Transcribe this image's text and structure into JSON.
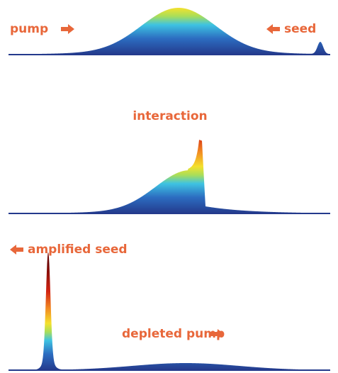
{
  "panels": [
    {
      "labels": {
        "left": "pump",
        "right": "seed"
      }
    },
    {
      "labels": {
        "center": "interaction"
      }
    },
    {
      "labels": {
        "left": "amplified seed",
        "center": "depleted pump"
      }
    }
  ]
}
